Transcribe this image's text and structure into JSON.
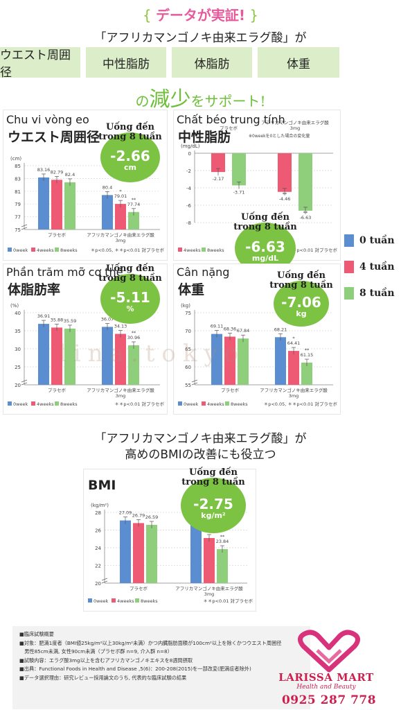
{
  "header": {
    "title": "データが実証!",
    "subtitle": "「アフリカマンゴノキ由来エラグ酸」が",
    "tabs": [
      "ウエスト周囲径",
      "中性脂肪",
      "体脂肪",
      "体重"
    ],
    "tagline_a": "の",
    "tagline_b": "減少",
    "tagline_c": "をサポート!"
  },
  "big_legend": [
    {
      "label": "0 tuần",
      "color": "#5b8ed0"
    },
    {
      "label": "4 tuần",
      "color": "#ee5a73"
    },
    {
      "label": "8 tuần",
      "color": "#8fce7a"
    }
  ],
  "colors": {
    "week0": "#5b8ed0",
    "week4": "#ee5a73",
    "week8": "#8fce7a",
    "bubble": "#7cc243"
  },
  "chart_data": [
    {
      "id": "waist",
      "type": "bar",
      "vn_title": "Chu vi vòng eo",
      "jp_title": "ウエスト周囲径",
      "unit_label": "(cm)",
      "groups": [
        "プラセボ",
        "アフリカマンゴノキ由来エラグ酸\n3mg"
      ],
      "series": [
        {
          "name": "0week",
          "values": [
            83.16,
            80.4
          ]
        },
        {
          "name": "4weeks",
          "values": [
            82.79,
            79.01
          ]
        },
        {
          "name": "8weeks",
          "values": [
            82.4,
            77.74
          ]
        }
      ],
      "sig": [
        [
          "",
          "",
          ""
        ],
        [
          "",
          "*",
          "**"
        ]
      ],
      "yticks": [
        75,
        77,
        79,
        81,
        83,
        85
      ],
      "ylim": [
        75,
        85
      ],
      "axis_break": true,
      "footnote": "＊p<0.05, ＊＊p<0.01  対プラセボ",
      "bubble": {
        "label": "Uống đến\ntrong 8 tuần",
        "value": "-2.66",
        "unit": "cm"
      }
    },
    {
      "id": "triglyceride",
      "type": "bar",
      "vn_title": "Chất béo trung tính",
      "jp_title": "中性脂肪",
      "note": "※0weekを0とした場合の変化量",
      "unit_label": "(mg/dL)",
      "groups": [
        "プラセボ",
        "アフリカマンゴノキ由来エラグ酸\n3mg"
      ],
      "series": [
        {
          "name": "4weeks",
          "values": [
            -2.17,
            -4.46
          ]
        },
        {
          "name": "8weeks",
          "values": [
            -3.71,
            -6.63
          ]
        }
      ],
      "sig": [
        [
          "",
          ""
        ],
        [
          "**",
          "**"
        ]
      ],
      "yticks": [
        0,
        -2,
        -4,
        -6,
        -8
      ],
      "ylim": [
        -8,
        0
      ],
      "footnote": "＊＊p<0.01 対プラセボ",
      "bubble": {
        "label": "Uống đến\ntrong 8 tuần",
        "value": "-6.63",
        "unit": "mg/dL"
      }
    },
    {
      "id": "bodyfat",
      "type": "bar",
      "vn_title": "Phần trăm mỡ cơ thể",
      "jp_title": "体脂肪率",
      "unit_label": "(%)",
      "groups": [
        "プラセボ",
        "アフリカマンゴノキ由来エラグ酸\n3mg"
      ],
      "series": [
        {
          "name": "0week",
          "values": [
            36.91,
            36.07
          ]
        },
        {
          "name": "4weeks",
          "values": [
            35.88,
            34.13
          ]
        },
        {
          "name": "8weeks",
          "values": [
            35.59,
            30.96
          ]
        }
      ],
      "sig": [
        [
          "",
          "",
          ""
        ],
        [
          "",
          "**",
          "**"
        ]
      ],
      "yticks": [
        20,
        25,
        30,
        35,
        40
      ],
      "ylim": [
        20,
        40
      ],
      "axis_break": true,
      "footnote": "＊＊p<0.01  対プラセボ",
      "bubble": {
        "label": "Uống đến\ntrong 8 tuần",
        "value": "-5.11",
        "unit": "%"
      }
    },
    {
      "id": "weight",
      "type": "bar",
      "vn_title": "Cân nặng",
      "jp_title": "体重",
      "unit_label": "(kg)",
      "groups": [
        "プラセボ",
        "アフリカマンゴノキ由来エラグ酸\n3mg"
      ],
      "series": [
        {
          "name": "0week",
          "values": [
            69.11,
            68.21
          ]
        },
        {
          "name": "4weeks",
          "values": [
            68.36,
            64.41
          ]
        },
        {
          "name": "8weeks",
          "values": [
            67.84,
            61.15
          ]
        }
      ],
      "sig": [
        [
          "",
          "",
          ""
        ],
        [
          "",
          "*",
          "**"
        ]
      ],
      "yticks": [
        55,
        60,
        65,
        70,
        75
      ],
      "ylim": [
        55,
        75
      ],
      "axis_break": true,
      "footnote": "＊p<0.05, ＊＊p<0.01  対プラセボ",
      "bubble": {
        "label": "Uống đến\ntrong 8 tuần",
        "value": "-7.06",
        "unit": "kg"
      }
    },
    {
      "id": "bmi",
      "type": "bar",
      "vn_title": "",
      "jp_title": "BMI",
      "unit_label": "(kg/m²)",
      "groups": [
        "プラセボ",
        "アフリカマンゴノキ由来エラグ酸\n3mg"
      ],
      "series": [
        {
          "name": "0week",
          "values": [
            27.09,
            26.59
          ]
        },
        {
          "name": "4weeks",
          "values": [
            26.79,
            25.1
          ]
        },
        {
          "name": "8weeks",
          "values": [
            26.59,
            23.84
          ]
        }
      ],
      "sig": [
        [
          "",
          "",
          ""
        ],
        [
          "",
          "**",
          "**"
        ]
      ],
      "yticks": [
        20,
        22,
        24,
        26,
        28
      ],
      "ylim": [
        20,
        28
      ],
      "axis_break": true,
      "footnote": "＊＊p<0.01  対プラセボ",
      "bubble": {
        "label": "Uống đến\ntrong 8 tuần",
        "value": "-2.75",
        "unit": "kg/m²"
      }
    }
  ],
  "bmi_heading": {
    "line1": "「アフリカマンゴノキ由来エラグ酸」が",
    "line2": "高めのBMIの改善にも役立つ"
  },
  "notes": {
    "title": "■臨床試験概要",
    "lines": [
      "■対象：肥満1度者（BMI値25kg/m²以上30kg/m²未満）かつ内臓脂肪面積が100cm²以上を除くかつウエスト周囲径",
      "　男性85cm未満, 女性90cm未満（プラセボ群 n=9, 介入群 n=8）",
      "■試験内容：エラグ酸3mg以上を含むアフリカマンゴノキエキスを8週間摂取",
      "■出典：Functional Foods in Health and Disease ,5(6)：200-208(2015)を一部改変(肥満症者除外)",
      "■データ選択理由：研究レビュー採用論文のうち, 代表的な臨床試験の結果"
    ]
  },
  "brand": {
    "name": "LARISSA MART",
    "tagline": "Health and Beauty",
    "phone": "0925 287 778"
  },
  "watermark": "lina.tokyo"
}
